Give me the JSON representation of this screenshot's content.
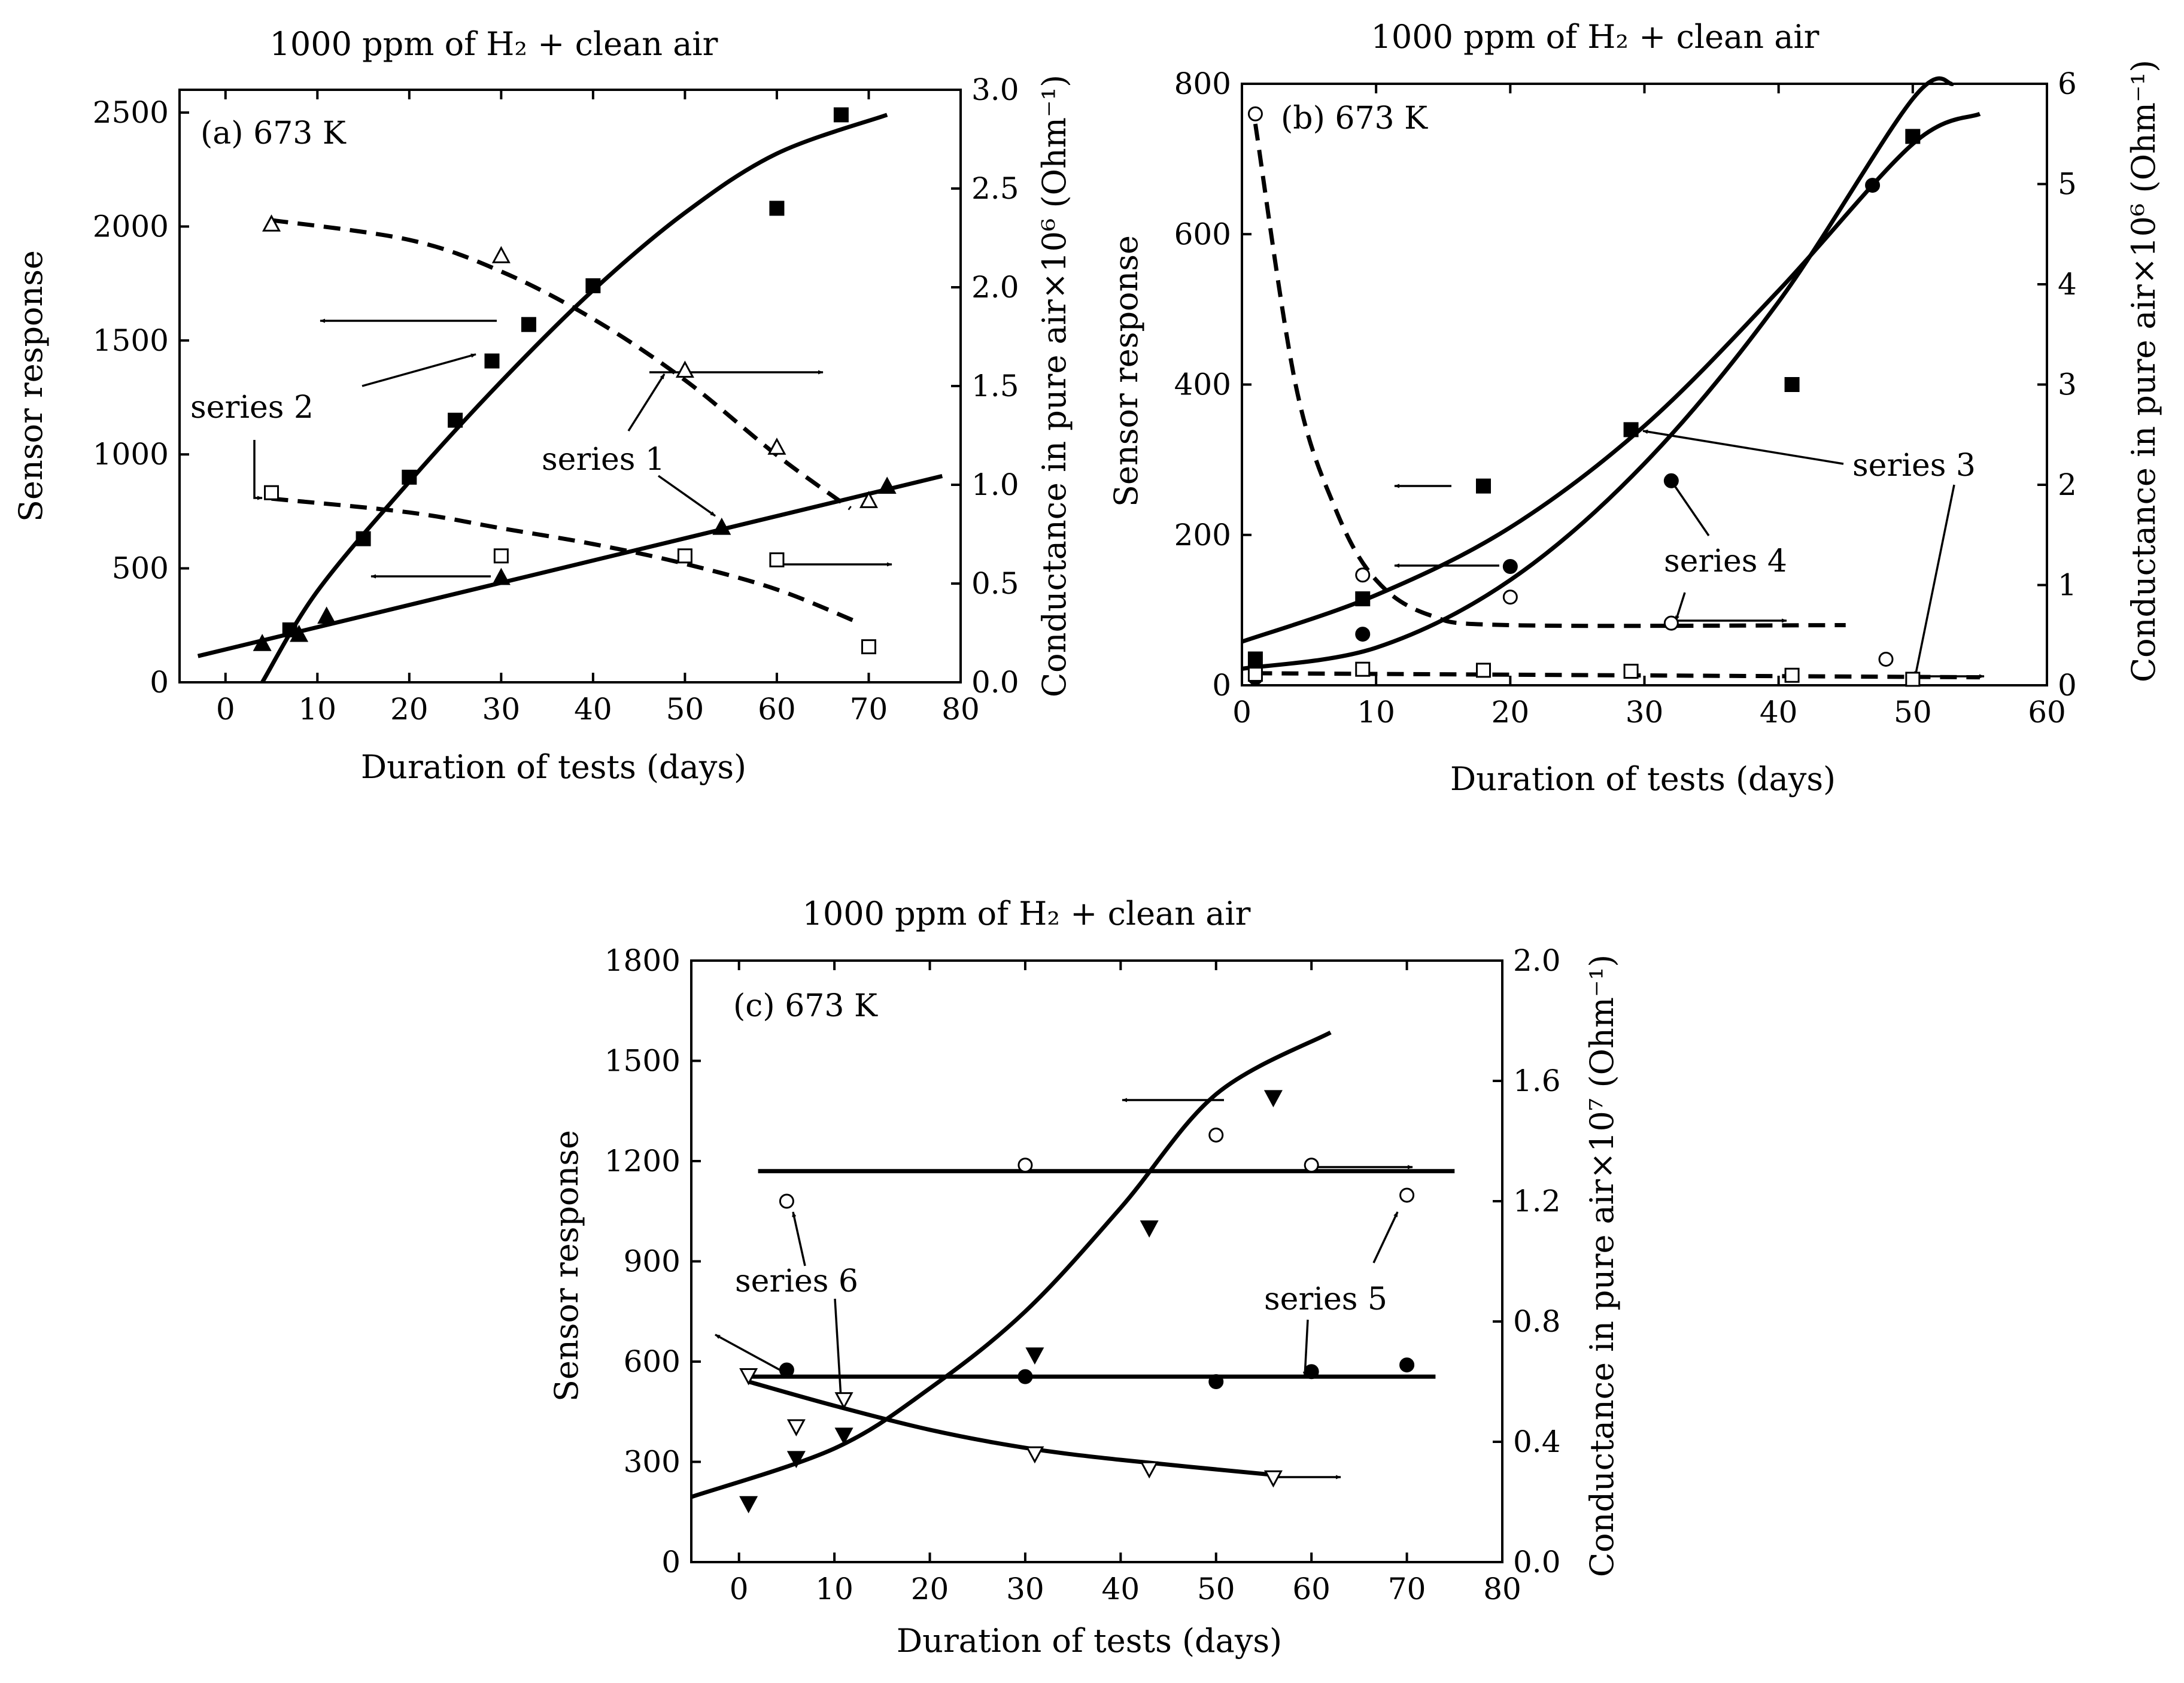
{
  "chart_data": [
    {
      "type": "scatter",
      "title": "1000 ppm of H₂ + clean air",
      "panel_label": "(a) 673 K",
      "xlabel": "Duration of tests (days)",
      "ylabel": "Sensor response",
      "y2label": "Conductance in pure air×10⁶ (Ohm⁻¹)",
      "xlim": [
        -5,
        80
      ],
      "ylim": [
        0,
        2600
      ],
      "y2lim": [
        0,
        3.0
      ],
      "xticks": [
        0,
        10,
        20,
        30,
        40,
        50,
        60,
        70,
        80
      ],
      "yticks": [
        0,
        500,
        1000,
        1500,
        2000,
        2500
      ],
      "y2ticks": [
        "0.0",
        "0.5",
        "1.0",
        "1.5",
        "2.0",
        "2.5",
        "3.0"
      ],
      "series": [
        {
          "marker": "square-filled",
          "axis": "left",
          "fit": "solid",
          "points": [
            [
              7,
              230
            ],
            [
              15,
              630
            ],
            [
              20,
              900
            ],
            [
              25,
              1150
            ],
            [
              29,
              1410
            ],
            [
              33,
              1570
            ],
            [
              40,
              1740
            ],
            [
              60,
              2080
            ],
            [
              67,
              2490
            ]
          ],
          "fit_points": [
            [
              4,
              0
            ],
            [
              10,
              400
            ],
            [
              20,
              880
            ],
            [
              30,
              1320
            ],
            [
              40,
              1720
            ],
            [
              50,
              2060
            ],
            [
              60,
              2320
            ],
            [
              72,
              2490
            ]
          ]
        },
        {
          "marker": "triangle-filled",
          "axis": "left",
          "fit": "solid",
          "points": [
            [
              4,
              170
            ],
            [
              8,
              210
            ],
            [
              11,
              290
            ],
            [
              30,
              460
            ],
            [
              54,
              680
            ],
            [
              72,
              860
            ]
          ],
          "fit_points": [
            [
              -3,
              115
            ],
            [
              78,
              905
            ]
          ]
        },
        {
          "marker": "triangle-open",
          "axis": "right",
          "fit": "dashed",
          "points": [
            [
              5,
              2.32
            ],
            [
              30,
              2.16
            ],
            [
              50,
              1.58
            ],
            [
              60,
              1.19
            ],
            [
              70,
              0.92
            ]
          ],
          "fit_points": [
            [
              5,
              2.34
            ],
            [
              20,
              2.24
            ],
            [
              30,
              2.08
            ],
            [
              40,
              1.84
            ],
            [
              50,
              1.53
            ],
            [
              60,
              1.15
            ],
            [
              68,
              0.88
            ]
          ]
        },
        {
          "marker": "square-open",
          "axis": "right",
          "fit": "dashed",
          "points": [
            [
              5,
              0.96
            ],
            [
              30,
              0.64
            ],
            [
              50,
              0.64
            ],
            [
              60,
              0.62
            ],
            [
              70,
              0.18
            ]
          ],
          "fit_points": [
            [
              5,
              0.93
            ],
            [
              20,
              0.86
            ],
            [
              30,
              0.78
            ],
            [
              40,
              0.7
            ],
            [
              50,
              0.6
            ],
            [
              60,
              0.47
            ],
            [
              69,
              0.3
            ]
          ]
        }
      ],
      "annotations": [
        "series 1",
        "series 2"
      ]
    },
    {
      "type": "scatter",
      "title": "1000 ppm of H₂ + clean air",
      "panel_label": "(b) 673 K",
      "xlabel": "Duration of tests (days)",
      "ylabel": "Sensor response",
      "y2label": "Conductance in pure air×10⁶ (Ohm⁻¹)",
      "xlim": [
        0,
        60
      ],
      "ylim": [
        0,
        800
      ],
      "y2lim": [
        0,
        6
      ],
      "xticks": [
        0,
        10,
        20,
        30,
        40,
        50,
        60
      ],
      "yticks": [
        0,
        200,
        400,
        600,
        800
      ],
      "y2ticks": [
        "0",
        "1",
        "2",
        "3",
        "4",
        "5",
        "6"
      ],
      "series": [
        {
          "marker": "square-filled",
          "axis": "left",
          "fit": "solid",
          "points": [
            [
              1,
              35
            ],
            [
              9,
              115
            ],
            [
              18,
              265
            ],
            [
              29,
              340
            ],
            [
              41,
              400
            ],
            [
              50,
              730
            ]
          ],
          "fit_points": [
            [
              0,
              58
            ],
            [
              10,
              120
            ],
            [
              20,
              210
            ],
            [
              30,
              345
            ],
            [
              40,
              525
            ],
            [
              50,
              720
            ],
            [
              55,
              760
            ]
          ]
        },
        {
          "marker": "circle-filled",
          "axis": "left",
          "fit": "solid",
          "points": [
            [
              1,
              10
            ],
            [
              9,
              68
            ],
            [
              20,
              158
            ],
            [
              32,
              272
            ],
            [
              47,
              665
            ]
          ],
          "fit_points": [
            [
              0,
              22
            ],
            [
              10,
              50
            ],
            [
              20,
              140
            ],
            [
              30,
              295
            ],
            [
              40,
              510
            ],
            [
              50,
              780
            ],
            [
              53,
              800
            ]
          ]
        },
        {
          "marker": "circle-open",
          "axis": "right",
          "fit": "dashed",
          "points": [
            [
              1,
              5.7
            ],
            [
              9,
              1.1
            ],
            [
              20,
              0.88
            ],
            [
              32,
              0.62
            ],
            [
              48,
              0.26
            ]
          ],
          "fit_points": [
            [
              1,
              5.6
            ],
            [
              4,
              3.0
            ],
            [
              7,
              1.75
            ],
            [
              10,
              1.05
            ],
            [
              14,
              0.7
            ],
            [
              20,
              0.6
            ],
            [
              45,
              0.6
            ]
          ]
        },
        {
          "marker": "square-open",
          "axis": "right",
          "fit": "dashed",
          "points": [
            [
              1,
              0.11
            ],
            [
              9,
              0.16
            ],
            [
              18,
              0.15
            ],
            [
              29,
              0.14
            ],
            [
              41,
              0.1
            ],
            [
              50,
              0.06
            ]
          ],
          "fit_points": [
            [
              1,
              0.12
            ],
            [
              55,
              0.08
            ]
          ]
        }
      ],
      "annotations": [
        "series 3",
        "series 4"
      ]
    },
    {
      "type": "scatter",
      "title": "1000 ppm of H₂ + clean air",
      "panel_label": "(c) 673 K",
      "xlabel": "Duration of tests (days)",
      "ylabel": "Sensor response",
      "y2label": "Conductance in pure air×10⁷ (Ohm⁻¹)",
      "xlim": [
        -5,
        80
      ],
      "ylim": [
        0,
        1800
      ],
      "y2lim": [
        0,
        2.0
      ],
      "xticks": [
        0,
        10,
        20,
        30,
        40,
        50,
        60,
        70,
        80
      ],
      "yticks": [
        0,
        300,
        600,
        900,
        1200,
        1500,
        1800
      ],
      "y2ticks": [
        "0.0",
        "0.4",
        "0.8",
        "1.2",
        "1.6",
        "2.0"
      ],
      "series": [
        {
          "marker": "triangle-down-filled",
          "axis": "left",
          "fit": "solid",
          "points": [
            [
              1,
              175
            ],
            [
              6,
              310
            ],
            [
              11,
              380
            ],
            [
              31,
              620
            ],
            [
              43,
              1000
            ],
            [
              56,
              1390
            ]
          ],
          "fit_points": [
            [
              -5,
              195
            ],
            [
              10,
              340
            ],
            [
              20,
              520
            ],
            [
              30,
              750
            ],
            [
              40,
              1060
            ],
            [
              50,
              1400
            ],
            [
              62,
              1585
            ]
          ]
        },
        {
          "marker": "circle-filled",
          "axis": "left",
          "fit": "solid",
          "points": [
            [
              5,
              575
            ],
            [
              30,
              555
            ],
            [
              50,
              540
            ],
            [
              60,
              570
            ],
            [
              70,
              590
            ]
          ],
          "fit_points": [
            [
              1,
              555
            ],
            [
              73,
              555
            ]
          ]
        },
        {
          "marker": "circle-open",
          "axis": "right",
          "fit": "solid",
          "points": [
            [
              5,
              1.2
            ],
            [
              30,
              1.32
            ],
            [
              50,
              1.42
            ],
            [
              60,
              1.32
            ],
            [
              70,
              1.22
            ]
          ],
          "fit_points": [
            [
              2,
              1.3
            ],
            [
              75,
              1.3
            ]
          ]
        },
        {
          "marker": "triangle-down-open",
          "axis": "right",
          "fit": "solid",
          "points": [
            [
              1,
              0.62
            ],
            [
              6,
              0.45
            ],
            [
              11,
              0.54
            ],
            [
              31,
              0.36
            ],
            [
              43,
              0.31
            ],
            [
              56,
              0.28
            ]
          ],
          "fit_points": [
            [
              1,
              0.6
            ],
            [
              10,
              0.52
            ],
            [
              20,
              0.44
            ],
            [
              30,
              0.38
            ],
            [
              40,
              0.34
            ],
            [
              56,
              0.29
            ]
          ]
        }
      ],
      "annotations": [
        "series 5",
        "series 6"
      ]
    }
  ]
}
